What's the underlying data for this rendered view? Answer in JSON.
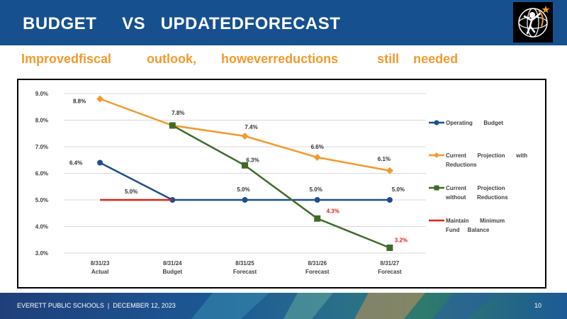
{
  "header": {
    "title": "BUDGET     VS   UPDATEDFORECAST",
    "subtitle": "Improvedfiscal          outlook,       howeverreductions           still    needed"
  },
  "footer": {
    "left": "EVERETT PUBLIC SCHOOLS  |  DECEMBER 12, 2023",
    "page": "10"
  },
  "colors": {
    "header_bg": "#16508f",
    "accent_orange": "#f29a2e",
    "operating_budget": "#1f4e8c",
    "current_with_reductions": "#f29a2e",
    "current_without_reductions": "#3f6b29",
    "maintain_minimum": "#e0201b"
  },
  "chart_data": {
    "type": "line",
    "categories": [
      [
        "8/31/23",
        "Actual"
      ],
      [
        "8/31/24",
        "Budget"
      ],
      [
        "8/31/25",
        "Forecast"
      ],
      [
        "8/31/26",
        "Forecast"
      ],
      [
        "8/31/27",
        "Forecast"
      ]
    ],
    "y_ticks": [
      "9.0%",
      "8.0%",
      "7.0%",
      "6.0%",
      "5.0%",
      "4.0%",
      "3.0%"
    ],
    "ylim": [
      3.0,
      9.0
    ],
    "grid": true,
    "legend_position": "right",
    "series": [
      {
        "name": "Operating Budget",
        "legend": [
          "Operating       Budget"
        ],
        "color": "#1f4e8c",
        "marker": "circle",
        "values": [
          6.4,
          5.0,
          5.0,
          5.0,
          5.0
        ],
        "labels": [
          "6.4%",
          "",
          "5.0%",
          "5.0%",
          "5.0%"
        ]
      },
      {
        "name": "Current Projection with Reductions",
        "legend": [
          "Current       Projection       with",
          "Reductions"
        ],
        "color": "#f29a2e",
        "marker": "diamond",
        "values": [
          8.8,
          7.8,
          7.4,
          6.6,
          6.1
        ],
        "labels": [
          "8.8%",
          "7.8%",
          "7.4%",
          "6.6%",
          "6.1%"
        ]
      },
      {
        "name": "Current Projection without Reductions",
        "legend": [
          "Current       Projection",
          "without       Reductions"
        ],
        "color": "#3f6b29",
        "marker": "square",
        "values": [
          null,
          7.8,
          6.3,
          4.3,
          3.2
        ],
        "labels": [
          "",
          "",
          "6.3%",
          "4.3%",
          "3.2%"
        ]
      },
      {
        "name": "Maintain Minimum Fund Balance",
        "legend": [
          "Maintain       Minimum",
          "Fund     Balance"
        ],
        "color": "#e0201b",
        "marker": "none",
        "values": [
          5.0,
          5.0,
          null,
          null,
          null
        ],
        "labels": [
          "5.0%",
          "",
          "",
          "",
          ""
        ]
      }
    ]
  }
}
